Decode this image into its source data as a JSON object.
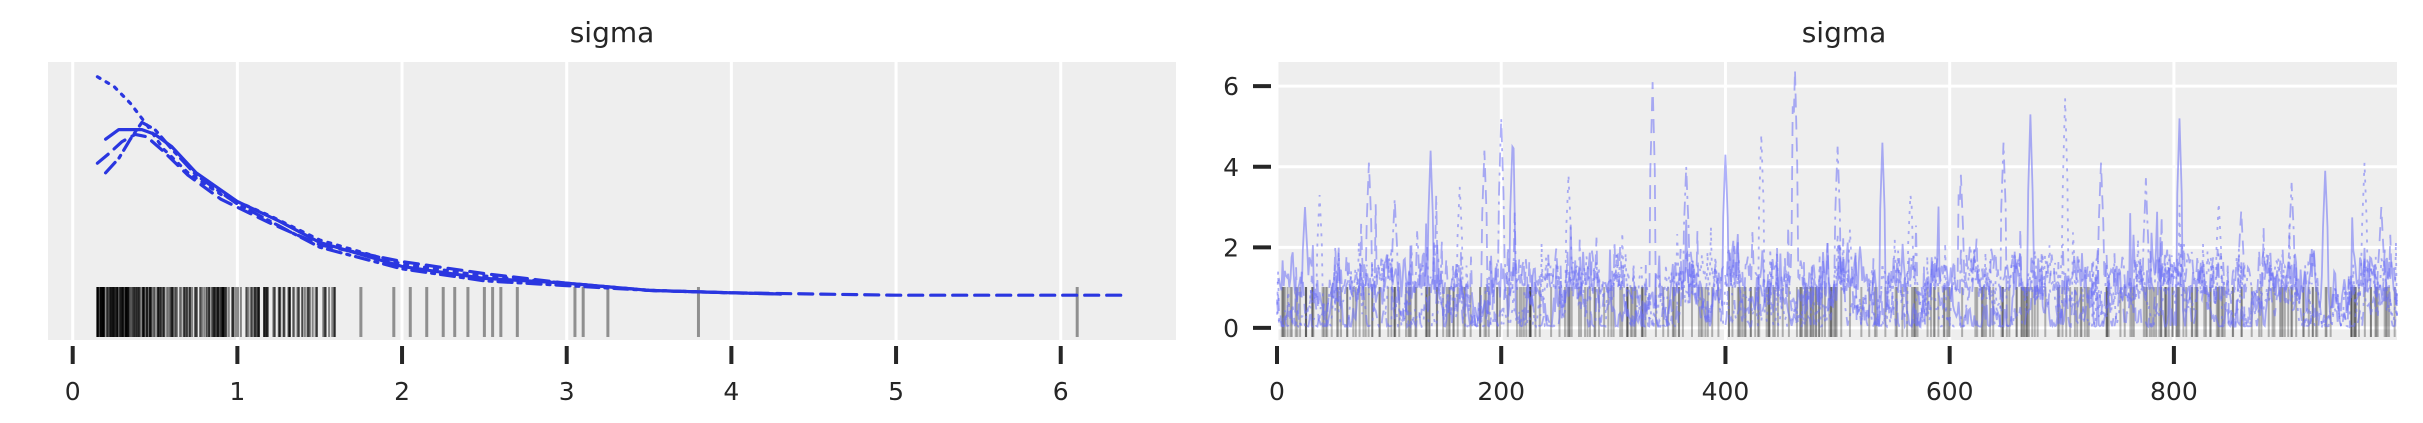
{
  "chart_data": [
    {
      "type": "line",
      "subtype": "kde-with-rug",
      "title": "sigma",
      "xlabel": "",
      "ylabel": "",
      "xlim": [
        -0.15,
        6.7
      ],
      "x_ticks": [
        "0",
        "1",
        "2",
        "3",
        "4",
        "5",
        "6"
      ],
      "x_tick_values": [
        0,
        1,
        2,
        3,
        4,
        5,
        6
      ],
      "y_ticks": [],
      "grid": true,
      "legend": "none",
      "series": [
        {
          "linestyle": "solid",
          "color": "#2a36e0",
          "x": [
            0.2,
            0.28,
            0.35,
            0.42,
            0.5,
            0.6,
            0.75,
            1.0,
            1.25,
            1.5,
            2.0,
            2.5,
            3.0,
            3.5,
            4.0,
            4.3
          ],
          "y": [
            0.67,
            0.71,
            0.71,
            0.71,
            0.69,
            0.64,
            0.53,
            0.41,
            0.33,
            0.24,
            0.14,
            0.09,
            0.07,
            0.04,
            0.03,
            0.025
          ]
        },
        {
          "linestyle": "dotted",
          "color": "#2a36e0",
          "x": [
            0.15,
            0.25,
            0.35,
            0.45,
            0.55,
            0.7,
            0.9,
            1.2,
            1.5,
            2.0,
            2.5,
            3.0,
            3.5,
            4.0
          ],
          "y": [
            0.93,
            0.89,
            0.82,
            0.73,
            0.63,
            0.53,
            0.44,
            0.35,
            0.25,
            0.15,
            0.1,
            0.07,
            0.04,
            0.03
          ]
        },
        {
          "linestyle": "dashed",
          "color": "#2a36e0",
          "x": [
            0.15,
            0.22,
            0.3,
            0.38,
            0.45,
            0.55,
            0.7,
            0.9,
            1.2,
            1.5,
            2.0,
            2.5,
            3.0,
            3.5,
            4.0,
            4.5,
            5.0,
            5.5,
            6.0,
            6.4
          ],
          "y": [
            0.57,
            0.61,
            0.66,
            0.69,
            0.68,
            0.62,
            0.52,
            0.42,
            0.32,
            0.23,
            0.16,
            0.11,
            0.07,
            0.04,
            0.03,
            0.025,
            0.02,
            0.02,
            0.02,
            0.02
          ]
        },
        {
          "linestyle": "dashdot",
          "color": "#2a36e0",
          "x": [
            0.2,
            0.28,
            0.35,
            0.42,
            0.5,
            0.6,
            0.75,
            1.0,
            1.25,
            1.5,
            2.0,
            2.5,
            3.0,
            3.5,
            4.0,
            4.3
          ],
          "y": [
            0.53,
            0.59,
            0.67,
            0.74,
            0.71,
            0.63,
            0.52,
            0.4,
            0.31,
            0.22,
            0.13,
            0.08,
            0.06,
            0.04,
            0.03,
            0.025
          ]
        }
      ],
      "rug_extra_values": [
        1.75,
        1.95,
        2.05,
        2.15,
        2.25,
        2.32,
        2.4,
        2.5,
        2.55,
        2.6,
        2.7,
        3.05,
        3.1,
        3.25,
        3.8,
        6.1
      ]
    },
    {
      "type": "line",
      "subtype": "trace",
      "title": "sigma",
      "xlabel": "",
      "ylabel": "",
      "xlim": [
        0,
        999
      ],
      "ylim": [
        -0.3,
        6.6
      ],
      "x_ticks": [
        "0",
        "200",
        "400",
        "600",
        "800"
      ],
      "x_tick_values": [
        0,
        200,
        400,
        600,
        800
      ],
      "y_ticks": [
        "0",
        "2",
        "4",
        "6"
      ],
      "y_tick_values": [
        0,
        2,
        4,
        6
      ],
      "grid": true,
      "legend": "none",
      "draws": 1000,
      "chains": 4,
      "series_color": "#6b6ff5",
      "peaks": [
        {
          "x": 25,
          "y": 3.0
        },
        {
          "x": 38,
          "y": 3.3
        },
        {
          "x": 82,
          "y": 4.1
        },
        {
          "x": 105,
          "y": 3.2
        },
        {
          "x": 137,
          "y": 4.4
        },
        {
          "x": 163,
          "y": 3.5
        },
        {
          "x": 185,
          "y": 4.4
        },
        {
          "x": 200,
          "y": 5.2
        },
        {
          "x": 210,
          "y": 4.5
        },
        {
          "x": 260,
          "y": 3.8
        },
        {
          "x": 335,
          "y": 6.1
        },
        {
          "x": 365,
          "y": 4.0
        },
        {
          "x": 400,
          "y": 4.3
        },
        {
          "x": 432,
          "y": 4.8
        },
        {
          "x": 462,
          "y": 6.4
        },
        {
          "x": 500,
          "y": 4.5
        },
        {
          "x": 540,
          "y": 4.6
        },
        {
          "x": 565,
          "y": 3.3
        },
        {
          "x": 610,
          "y": 3.8
        },
        {
          "x": 648,
          "y": 4.6
        },
        {
          "x": 672,
          "y": 5.3
        },
        {
          "x": 703,
          "y": 5.7
        },
        {
          "x": 735,
          "y": 4.1
        },
        {
          "x": 775,
          "y": 3.5
        },
        {
          "x": 805,
          "y": 5.2
        },
        {
          "x": 840,
          "y": 3.1
        },
        {
          "x": 860,
          "y": 2.9
        },
        {
          "x": 905,
          "y": 3.6
        },
        {
          "x": 935,
          "y": 3.9
        },
        {
          "x": 970,
          "y": 4.1
        },
        {
          "x": 985,
          "y": 3.0
        }
      ]
    }
  ]
}
